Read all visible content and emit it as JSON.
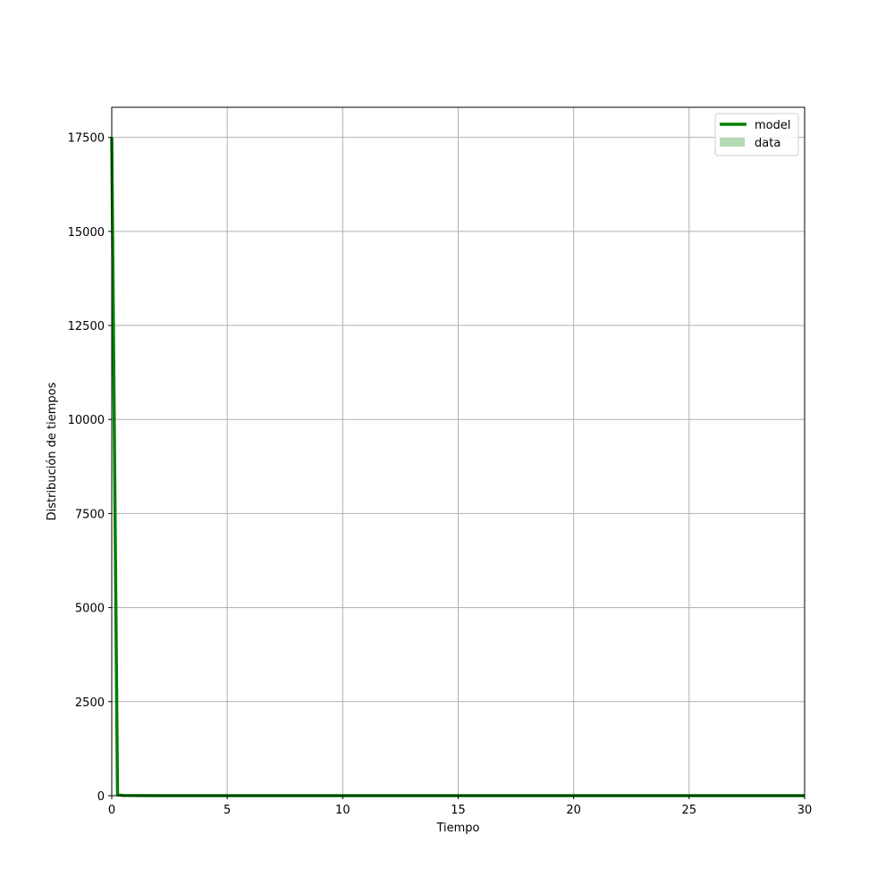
{
  "chart_data": {
    "type": "line",
    "title": "",
    "xlabel": "Tiempo",
    "ylabel": "Distribución de tiempos",
    "xlim": [
      0,
      30
    ],
    "ylim": [
      0,
      18300
    ],
    "x_ticks": [
      0,
      5,
      10,
      15,
      20,
      25,
      30
    ],
    "x_tick_labels": [
      "0",
      "5",
      "10",
      "15",
      "20",
      "25",
      "30"
    ],
    "y_ticks": [
      0,
      2500,
      5000,
      7500,
      10000,
      12500,
      15000,
      17500
    ],
    "y_tick_labels": [
      "0",
      "2500",
      "5000",
      "7500",
      "10000",
      "12500",
      "15000",
      "17500"
    ],
    "grid": true,
    "legend_position": "top-right",
    "series": [
      {
        "name": "model",
        "kind": "line",
        "color": "#008000",
        "x": [
          0,
          0.25,
          0.5,
          1,
          2,
          5,
          10,
          15,
          20,
          25,
          30
        ],
        "values": [
          17500,
          20,
          5,
          2,
          1,
          0.5,
          0.3,
          0.2,
          0.2,
          0.2,
          0.2
        ]
      },
      {
        "name": "data",
        "kind": "bar",
        "color": "#b3dab3",
        "x": [],
        "values": []
      }
    ]
  }
}
